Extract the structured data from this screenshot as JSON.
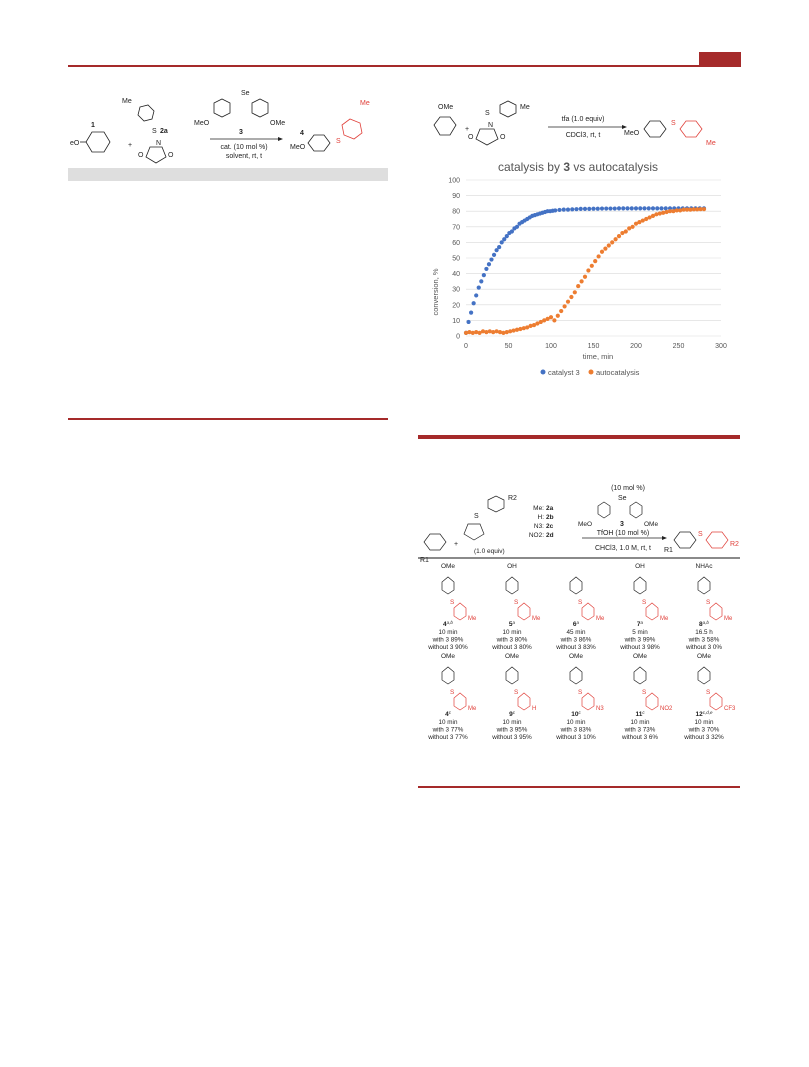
{
  "scheme_left": {
    "mol_1_label": "1",
    "meo_cut": "eO",
    "plus": "+",
    "me_top": "Me",
    "s_label": "S",
    "reagent_label": "2a",
    "n_label": "N",
    "o_label": "O",
    "se_label": "Se",
    "meo_left": "MeO",
    "ome_right": "OMe",
    "catalyst_number": "3",
    "conditions_line1": "cat. (10 mol %)",
    "conditions_line2": "solvent, rt, t",
    "product_number": "4",
    "product_meo": "MeO",
    "product_s": "S",
    "product_me": "Me"
  },
  "scheme_right": {
    "ome": "OMe",
    "plus": "+",
    "s": "S",
    "me": "Me",
    "n": "N",
    "o": "O",
    "reagent_line1": "tfa (1.0 equiv)",
    "reagent_line2": "CDCl3, rt, t",
    "product_meo": "MeO",
    "product_s": "S",
    "product_me": "Me"
  },
  "chart_data": {
    "type": "scatter",
    "title_parts": [
      "catalysis by ",
      "3",
      " vs autocatalysis"
    ],
    "xlabel": "time, min",
    "ylabel": "conversion, %",
    "xlim": [
      0,
      300
    ],
    "ylim": [
      0,
      100
    ],
    "x_ticks": [
      0,
      50,
      100,
      150,
      200,
      250,
      300
    ],
    "y_ticks": [
      0,
      10,
      20,
      30,
      40,
      50,
      60,
      70,
      80,
      90,
      100
    ],
    "grid": true,
    "legend_position": "bottom",
    "colors": {
      "catalyst": "#4472c4",
      "auto": "#ed7d31"
    },
    "series": [
      {
        "name": "catalyst 3",
        "x": [
          0,
          3,
          6,
          9,
          12,
          15,
          18,
          21,
          24,
          27,
          30,
          33,
          36,
          39,
          42,
          45,
          48,
          51,
          54,
          57,
          60,
          63,
          66,
          69,
          72,
          75,
          78,
          81,
          84,
          87,
          90,
          93,
          96,
          99,
          102,
          105,
          110,
          115,
          120,
          125,
          130,
          135,
          140,
          145,
          150,
          155,
          160,
          165,
          170,
          175,
          180,
          185,
          190,
          195,
          200,
          205,
          210,
          215,
          220,
          225,
          230,
          235,
          240,
          245,
          250,
          255,
          260,
          265,
          270,
          275,
          280
        ],
        "y": [
          2,
          9,
          15,
          21,
          26,
          31,
          35,
          39,
          43,
          46,
          49,
          52,
          55,
          57,
          60,
          62,
          64,
          66,
          67,
          69,
          70,
          72,
          73,
          74,
          75,
          76,
          77,
          77.5,
          78,
          78.5,
          79,
          79.5,
          80,
          80,
          80.3,
          80.5,
          80.8,
          81,
          81,
          81.2,
          81.3,
          81.5,
          81.5,
          81.5,
          81.6,
          81.6,
          81.7,
          81.7,
          81.7,
          81.7,
          81.8,
          81.8,
          81.8,
          81.8,
          81.8,
          81.8,
          81.8,
          81.8,
          81.8,
          81.8,
          81.8,
          81.8,
          81.8,
          81.8,
          81.8,
          81.8,
          81.8,
          81.8,
          81.8,
          81.8,
          81.8
        ]
      },
      {
        "name": "autocatalysis",
        "x": [
          0,
          4,
          8,
          12,
          16,
          20,
          24,
          28,
          32,
          36,
          40,
          44,
          48,
          52,
          56,
          60,
          64,
          68,
          72,
          76,
          80,
          84,
          88,
          92,
          96,
          100,
          104,
          108,
          112,
          116,
          120,
          124,
          128,
          132,
          136,
          140,
          144,
          148,
          152,
          156,
          160,
          164,
          168,
          172,
          176,
          180,
          184,
          188,
          192,
          196,
          200,
          204,
          208,
          212,
          216,
          220,
          224,
          228,
          232,
          236,
          240,
          244,
          248,
          252,
          256,
          260,
          264,
          268,
          272,
          276,
          280
        ],
        "y": [
          2,
          2.5,
          2,
          2.5,
          2,
          3,
          2.5,
          3,
          2.5,
          3,
          2.5,
          2,
          2.5,
          3,
          3.5,
          4,
          4.5,
          5,
          5.5,
          6.5,
          7,
          8,
          9,
          10,
          11,
          12,
          10,
          13,
          16,
          19,
          22,
          25,
          28,
          32,
          35,
          38,
          42,
          45,
          48,
          51,
          54,
          56,
          58,
          60,
          62,
          64,
          66,
          67,
          69,
          70,
          72,
          73,
          74,
          75,
          76,
          77,
          78,
          78.5,
          79,
          79.5,
          80,
          80,
          80.5,
          80.5,
          81,
          81,
          81,
          81.2,
          81.2,
          81.3,
          81.3
        ]
      }
    ]
  },
  "scope_table": {
    "catalyst_amount": "(10 mol %)",
    "se": "Se",
    "meo": "MeO",
    "ome": "OMe",
    "catalyst_number": "3",
    "acid": "TfOH (10 mol %)",
    "solvent": "CHCl3, 1.0 M, rt, t",
    "r1": "R1",
    "r2": "R2",
    "reagent_amount": "(1.0 equiv)",
    "subst_list": [
      {
        "group": "Me:",
        "id": "2a"
      },
      {
        "group": "H:",
        "id": "2b"
      },
      {
        "group": "N3:",
        "id": "2c"
      },
      {
        "group": "NO2:",
        "id": "2d"
      }
    ],
    "products_row1": [
      {
        "num": "4",
        "sup": "a,b",
        "time": "10 min",
        "with": "with 3 89%",
        "without": "without 3 90%",
        "top": "OMe"
      },
      {
        "num": "5",
        "sup": "a",
        "time": "10 min",
        "with": "with 3 80%",
        "without": "without 3 80%",
        "top": "OH"
      },
      {
        "num": "6",
        "sup": "a",
        "time": "45 min",
        "with": "with 3 86%",
        "without": "without 3 83%",
        "top": ""
      },
      {
        "num": "7",
        "sup": "a",
        "time": "5 min",
        "with": "with 3 99%",
        "without": "without 3 98%",
        "top": "OH"
      },
      {
        "num": "8",
        "sup": "a,b",
        "time": "16.5 h",
        "with": "with 3 58%",
        "without": "without 3 0%",
        "top": "NHAc"
      }
    ],
    "products_row2": [
      {
        "num": "4",
        "sup": "c",
        "time": "10 min",
        "with": "with 3 77%",
        "without": "without 3 77%",
        "top": "OMe",
        "sub": "Me"
      },
      {
        "num": "9",
        "sup": "c",
        "time": "10 min",
        "with": "with 3 95%",
        "without": "without 3 95%",
        "top": "OMe",
        "sub": "H"
      },
      {
        "num": "10",
        "sup": "c",
        "time": "10 min",
        "with": "with 3  83%",
        "without": "without 3 10%",
        "top": "OMe",
        "sub": "N3"
      },
      {
        "num": "11",
        "sup": "c",
        "time": "10 min",
        "with": "with 3 73%",
        "without": "without 3 6%",
        "top": "OMe",
        "sub": "NO2"
      },
      {
        "num": "12",
        "sup": "c,d,e",
        "time": "10 min",
        "with": "with 3 70%",
        "without": "without 3 32%",
        "top": "OMe",
        "sub": "CF3"
      }
    ],
    "s_label": "S",
    "me_label": "Me"
  }
}
